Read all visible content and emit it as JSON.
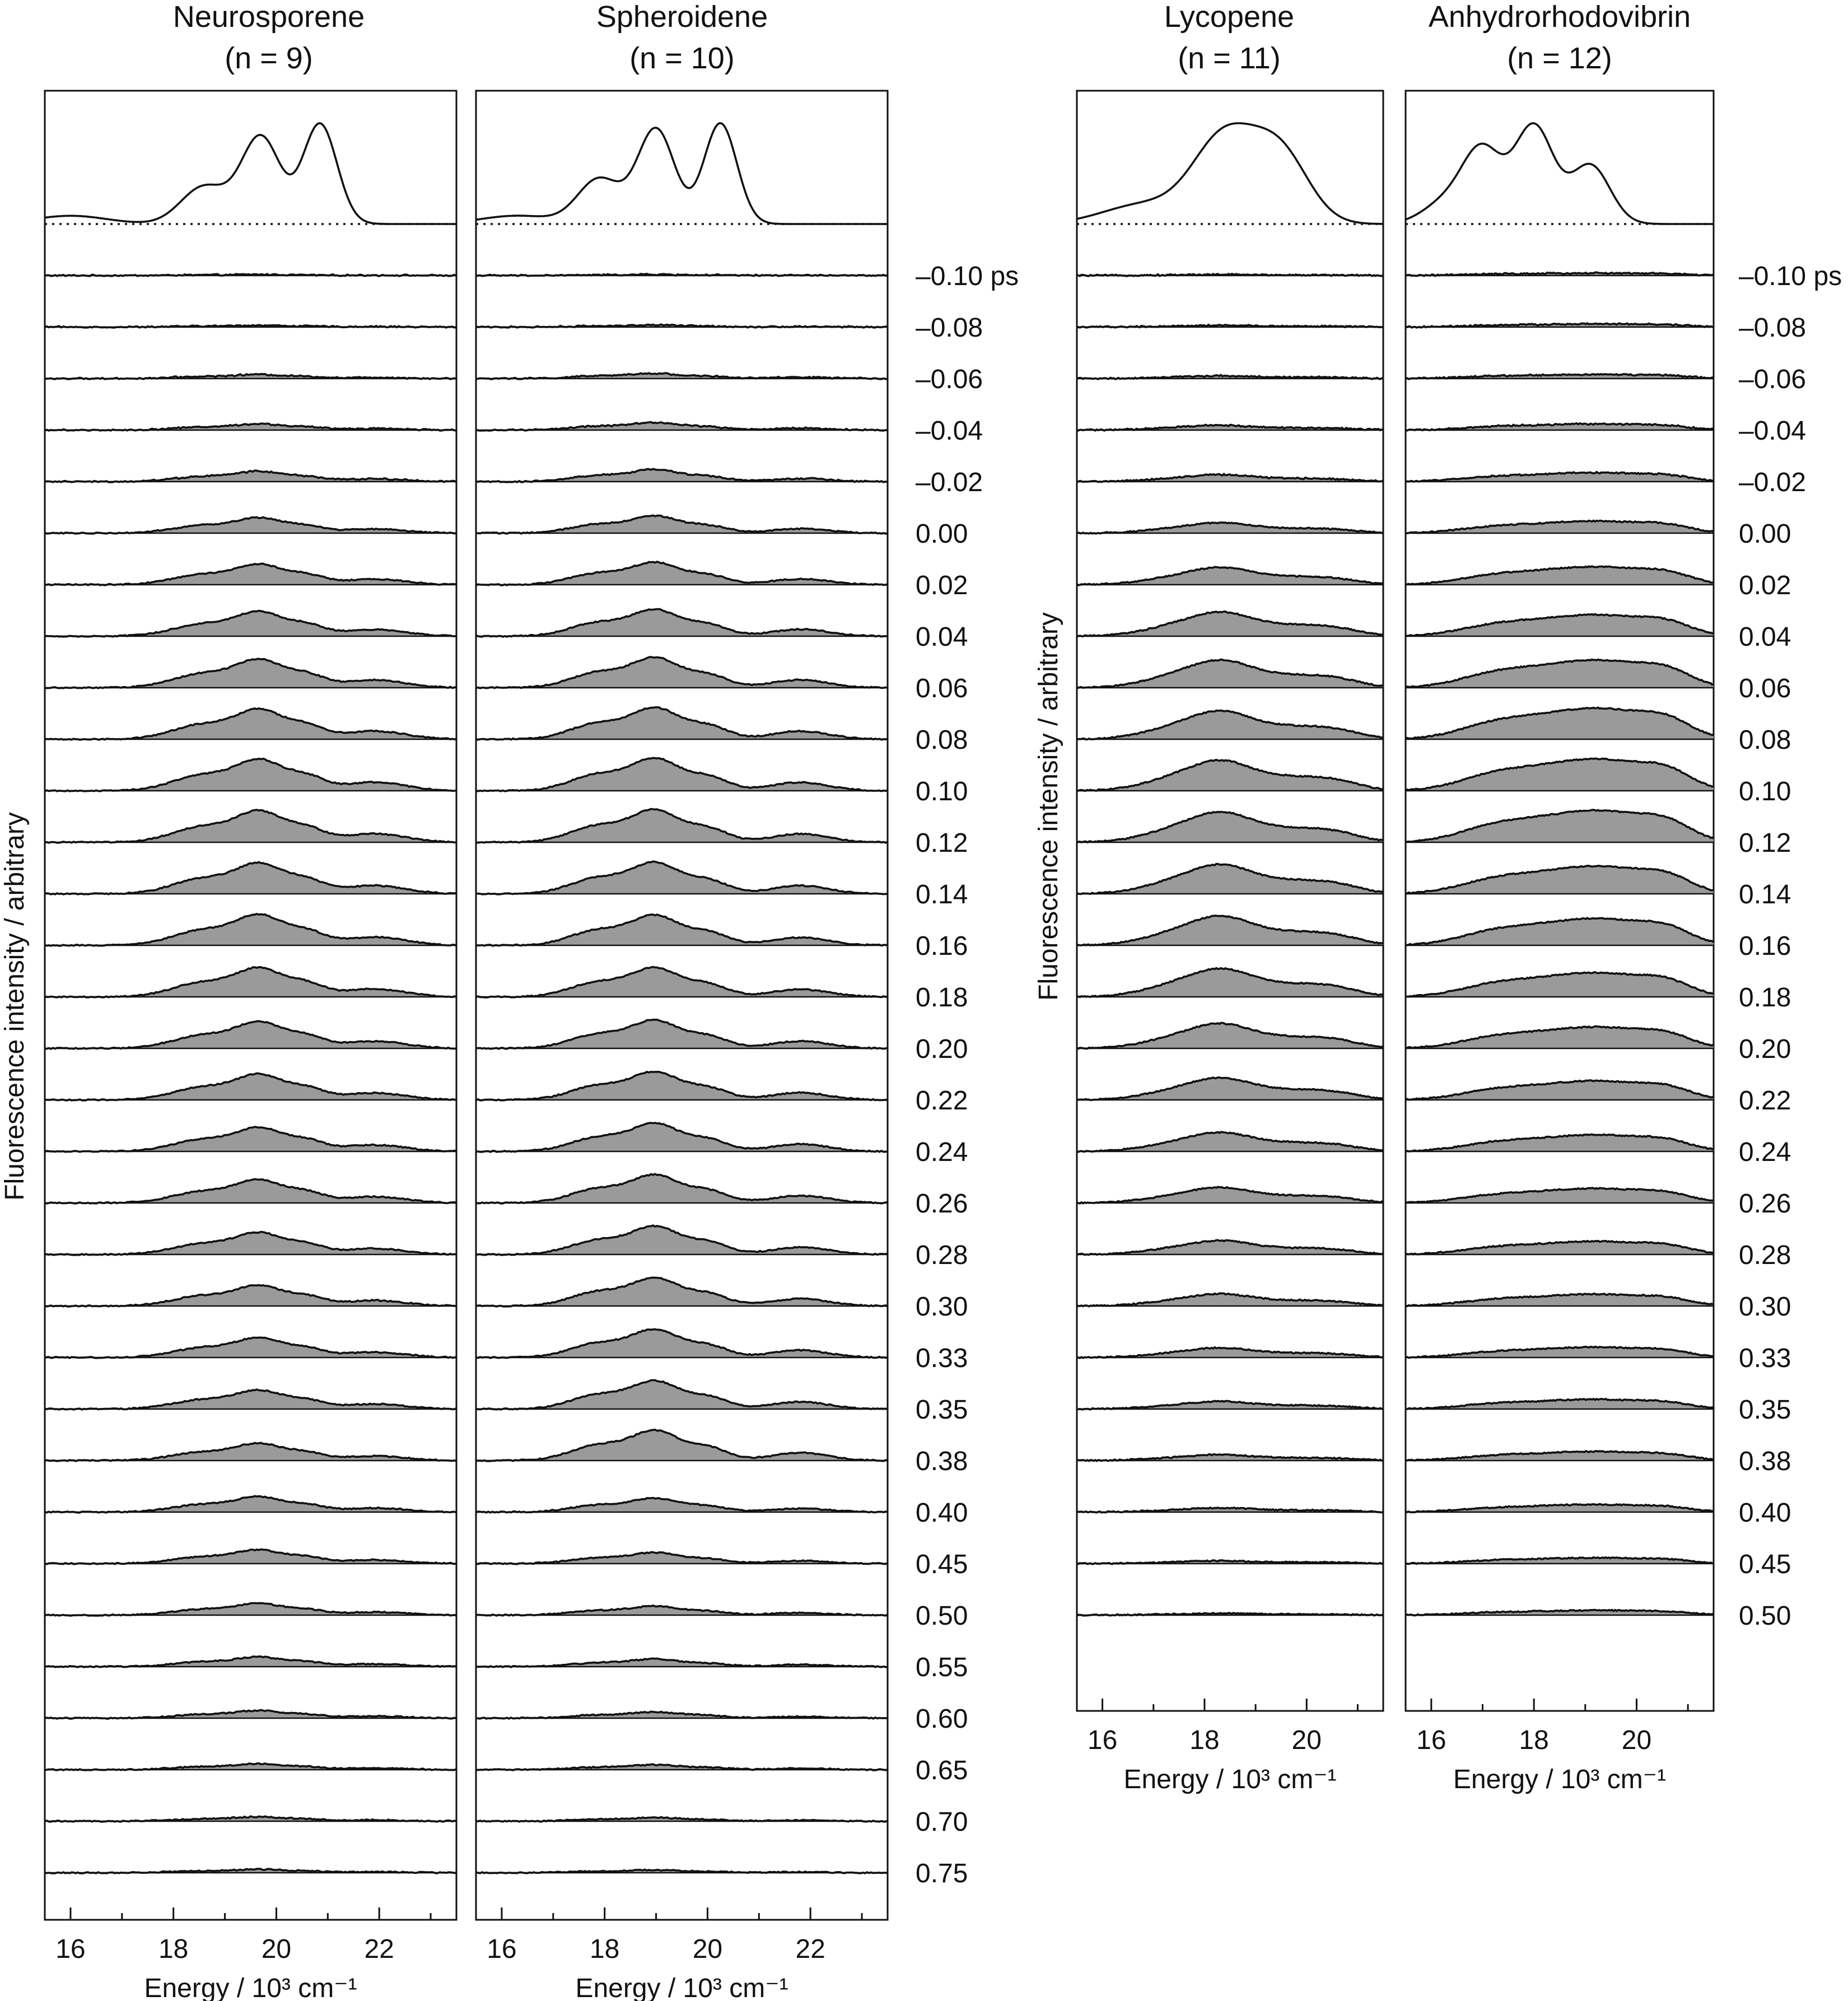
{
  "chart_data": {
    "type": "area",
    "x_axis_label": "Energy / 10³ cm⁻¹",
    "y_axis_label": "Fluorescence intensity / arbitrary",
    "delay_unit": "ps",
    "panels": [
      {
        "id": "neurosporene",
        "title": "Neurosporene",
        "subtitle": "(n = 9)",
        "xlim": [
          15.5,
          23.5
        ],
        "xticks": [
          "16",
          "18",
          "20",
          "22"
        ],
        "steady_state": [
          {
            "pos": 16.0,
            "w": 0.7,
            "a": 0.07
          },
          {
            "pos": 18.6,
            "w": 0.45,
            "a": 0.32
          },
          {
            "pos": 19.7,
            "w": 0.38,
            "a": 0.74
          },
          {
            "pos": 20.85,
            "w": 0.33,
            "a": 0.85
          }
        ],
        "delays": [
          "–0.10 ps",
          "–0.08",
          "–0.06",
          "–0.04",
          "–0.02",
          "0.00",
          "0.02",
          "0.04",
          "0.06",
          "0.08",
          "0.10",
          "0.12",
          "0.14",
          "0.16",
          "0.18",
          "0.20",
          "0.22",
          "0.24",
          "0.26",
          "0.28",
          "0.30",
          "0.33",
          "0.35",
          "0.38",
          "0.40",
          "0.45",
          "0.50",
          "0.55",
          "0.60",
          "0.65",
          "0.70",
          "0.75"
        ],
        "amplitudes": [
          0.03,
          0.05,
          0.12,
          0.18,
          0.3,
          0.45,
          0.6,
          0.72,
          0.83,
          0.88,
          0.92,
          0.92,
          0.9,
          0.9,
          0.85,
          0.78,
          0.75,
          0.7,
          0.68,
          0.64,
          0.6,
          0.58,
          0.55,
          0.5,
          0.45,
          0.4,
          0.34,
          0.28,
          0.22,
          0.17,
          0.13,
          0.1
        ],
        "peaks": [
          {
            "pos": 18.6,
            "w": 0.6,
            "a": 0.55
          },
          {
            "pos": 19.7,
            "w": 0.45,
            "a": 1.0
          },
          {
            "pos": 20.6,
            "w": 0.35,
            "a": 0.45
          },
          {
            "pos": 21.9,
            "w": 0.6,
            "a": 0.3
          }
        ]
      },
      {
        "id": "spheroidene",
        "title": "Spheroidene",
        "subtitle": "(n = 10)",
        "xlim": [
          15.5,
          23.5
        ],
        "xticks": [
          "16",
          "18",
          "20",
          "22"
        ],
        "steady_state": [
          {
            "pos": 16.3,
            "w": 0.7,
            "a": 0.07
          },
          {
            "pos": 17.9,
            "w": 0.42,
            "a": 0.38
          },
          {
            "pos": 19.0,
            "w": 0.36,
            "a": 0.8
          },
          {
            "pos": 20.25,
            "w": 0.32,
            "a": 0.85
          }
        ],
        "delays": [
          "–0.10 ps",
          "–0.08",
          "–0.06",
          "–0.04",
          "–0.02",
          "0.00",
          "0.02",
          "0.04",
          "0.06",
          "0.08",
          "0.10",
          "0.12",
          "0.14",
          "0.16",
          "0.18",
          "0.20",
          "0.22",
          "0.24",
          "0.26",
          "0.28",
          "0.30",
          "0.33",
          "0.35",
          "0.38",
          "0.40",
          "0.45",
          "0.50",
          "0.55",
          "0.60",
          "0.65",
          "0.70",
          "0.75"
        ],
        "amplitudes": [
          0.03,
          0.06,
          0.15,
          0.22,
          0.35,
          0.5,
          0.65,
          0.78,
          0.88,
          0.92,
          0.95,
          0.95,
          0.92,
          0.88,
          0.85,
          0.82,
          0.82,
          0.82,
          0.82,
          0.82,
          0.82,
          0.82,
          0.82,
          0.88,
          0.4,
          0.32,
          0.26,
          0.22,
          0.18,
          0.14,
          0.11,
          0.08
        ],
        "peaks": [
          {
            "pos": 17.9,
            "w": 0.55,
            "a": 0.55
          },
          {
            "pos": 19.0,
            "w": 0.45,
            "a": 1.0
          },
          {
            "pos": 20.0,
            "w": 0.4,
            "a": 0.45
          },
          {
            "pos": 21.8,
            "w": 0.55,
            "a": 0.28
          }
        ]
      },
      {
        "id": "lycopene",
        "title": "Lycopene",
        "subtitle": "(n = 11)",
        "xlim": [
          15.5,
          21.5
        ],
        "xticks": [
          "16",
          "18",
          "20"
        ],
        "steady_state": [
          {
            "pos": 16.8,
            "w": 0.8,
            "a": 0.18
          },
          {
            "pos": 18.4,
            "w": 0.62,
            "a": 0.8
          },
          {
            "pos": 19.5,
            "w": 0.55,
            "a": 0.62
          }
        ],
        "delays": [
          "–0.10 ps",
          "–0.08",
          "–0.06",
          "–0.04",
          "–0.02",
          "0.00",
          "0.02",
          "0.04",
          "0.06",
          "0.08",
          "0.10",
          "0.12",
          "0.14",
          "0.16",
          "0.18",
          "0.20",
          "0.22",
          "0.24",
          "0.26",
          "0.28",
          "0.30",
          "0.33",
          "0.35",
          "0.38",
          "0.40",
          "0.45",
          "0.50"
        ],
        "amplitudes": [
          0.03,
          0.05,
          0.08,
          0.14,
          0.2,
          0.3,
          0.5,
          0.7,
          0.8,
          0.82,
          0.88,
          0.88,
          0.85,
          0.85,
          0.82,
          0.72,
          0.64,
          0.55,
          0.45,
          0.4,
          0.35,
          0.28,
          0.22,
          0.17,
          0.12,
          0.08,
          0.05
        ],
        "peaks": [
          {
            "pos": 17.6,
            "w": 0.7,
            "a": 0.7
          },
          {
            "pos": 18.4,
            "w": 0.55,
            "a": 1.0
          },
          {
            "pos": 19.6,
            "w": 0.7,
            "a": 0.62
          },
          {
            "pos": 20.6,
            "w": 0.5,
            "a": 0.35
          }
        ]
      },
      {
        "id": "anhydrorhodovibrin",
        "title": "Anhydrorhodovibrin",
        "subtitle": "(n = 12)",
        "xlim": [
          15.5,
          21.5
        ],
        "xticks": [
          "16",
          "18",
          "20"
        ],
        "steady_state": [
          {
            "pos": 16.3,
            "w": 0.45,
            "a": 0.18
          },
          {
            "pos": 17.0,
            "w": 0.38,
            "a": 0.58
          },
          {
            "pos": 18.0,
            "w": 0.38,
            "a": 0.8
          },
          {
            "pos": 19.1,
            "w": 0.38,
            "a": 0.48
          }
        ],
        "delays": [
          "–0.10 ps",
          "–0.08",
          "–0.06",
          "–0.04",
          "–0.02",
          "0.00",
          "0.02",
          "0.04",
          "0.06",
          "0.08",
          "0.10",
          "0.12",
          "0.14",
          "0.16",
          "0.18",
          "0.20",
          "0.22",
          "0.24",
          "0.26",
          "0.28",
          "0.30",
          "0.33",
          "0.35",
          "0.38",
          "0.40",
          "0.45",
          "0.50"
        ],
        "amplitudes": [
          0.07,
          0.09,
          0.12,
          0.18,
          0.26,
          0.35,
          0.52,
          0.62,
          0.8,
          0.9,
          0.92,
          0.92,
          0.8,
          0.78,
          0.7,
          0.62,
          0.55,
          0.48,
          0.42,
          0.38,
          0.34,
          0.3,
          0.28,
          0.26,
          0.22,
          0.17,
          0.14
        ],
        "peaks": [
          {
            "pos": 17.2,
            "w": 0.7,
            "a": 0.6
          },
          {
            "pos": 18.5,
            "w": 0.8,
            "a": 0.9
          },
          {
            "pos": 19.6,
            "w": 0.7,
            "a": 0.9
          },
          {
            "pos": 20.6,
            "w": 0.5,
            "a": 0.75
          }
        ]
      }
    ]
  }
}
